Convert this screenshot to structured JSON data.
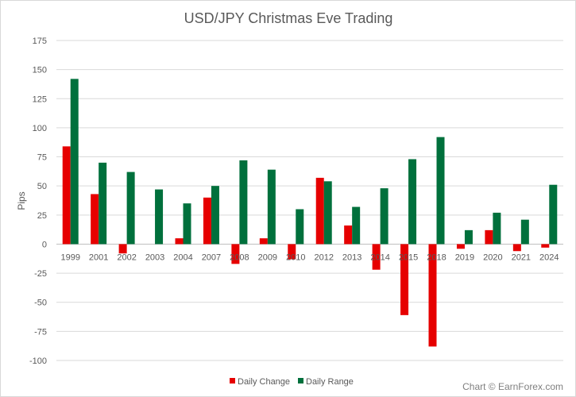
{
  "chart_data": {
    "type": "bar",
    "title": "USD/JPY Christmas Eve Trading",
    "ylabel": "Pips",
    "xlabel": "",
    "ylim": [
      -100,
      175
    ],
    "yticks": [
      -100,
      -75,
      -50,
      -25,
      0,
      25,
      50,
      75,
      100,
      125,
      150,
      175
    ],
    "grid": true,
    "legend_position": "bottom",
    "categories": [
      "1999",
      "2001",
      "2002",
      "2003",
      "2004",
      "2007",
      "2008",
      "2009",
      "2010",
      "2012",
      "2013",
      "2014",
      "2015",
      "2018",
      "2019",
      "2020",
      "2021",
      "2024"
    ],
    "series": [
      {
        "name": "Daily Change",
        "color": "#e60000",
        "values": [
          84,
          43,
          -8,
          0,
          5,
          40,
          -17,
          5,
          -13,
          57,
          16,
          -22,
          -61,
          -88,
          -4,
          12,
          -6,
          -3
        ]
      },
      {
        "name": "Daily Range",
        "color": "#00703c",
        "values": [
          142,
          70,
          62,
          47,
          35,
          50,
          72,
          64,
          30,
          54,
          32,
          48,
          73,
          92,
          12,
          27,
          21,
          51
        ]
      }
    ],
    "credit": "Chart © EarnForex.com"
  }
}
